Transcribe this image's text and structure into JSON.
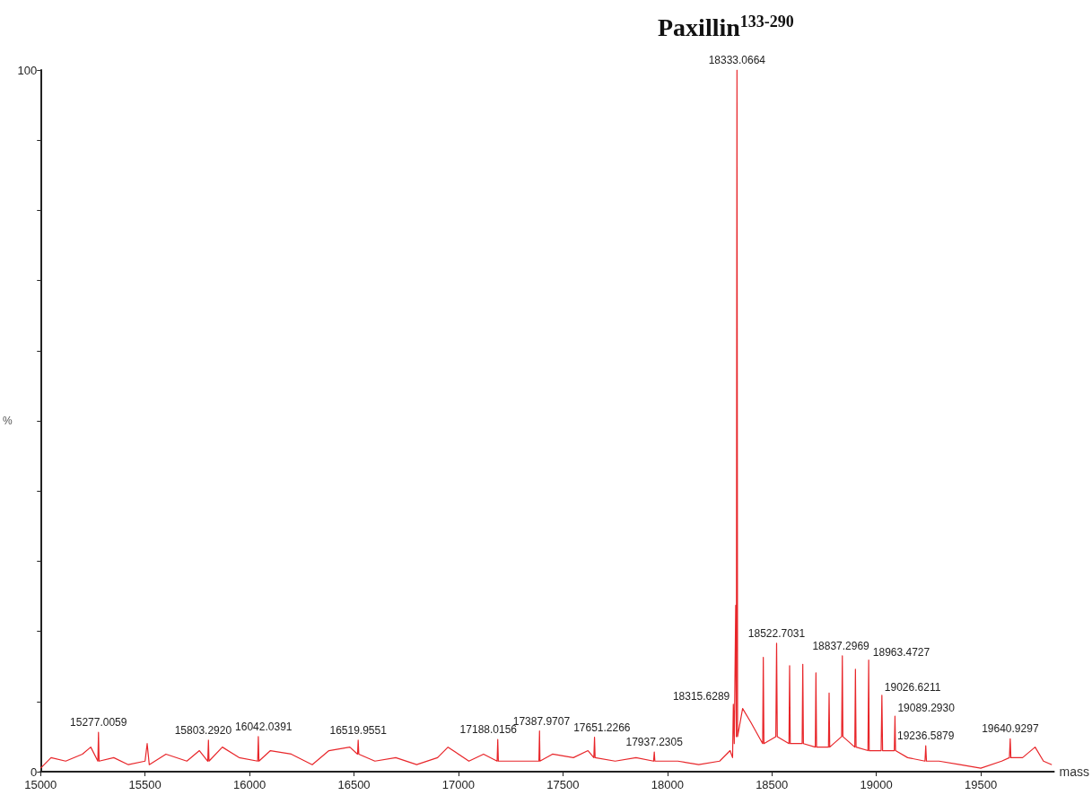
{
  "chart_data": {
    "type": "line",
    "title": "Paxillin$^{133-290}$",
    "xlabel": "mass",
    "ylabel": "%",
    "xlim": [
      15000,
      19850
    ],
    "xticks": [
      15000,
      15500,
      16000,
      16500,
      17000,
      17500,
      18000,
      18500,
      19000,
      19500
    ],
    "ylim": [
      0,
      100
    ],
    "yticks": [
      0,
      {
        "value": 10,
        "label": null
      },
      {
        "value": 20,
        "label": null
      },
      {
        "value": 30,
        "label": null
      },
      {
        "value": 40,
        "label": null
      },
      {
        "value": 50,
        "label": null
      },
      {
        "value": 60,
        "label": null
      },
      {
        "value": 70,
        "label": null
      },
      {
        "value": 80,
        "label": null
      },
      {
        "value": 90,
        "label": null
      },
      100
    ],
    "grid": false,
    "marker": "none",
    "line_style": "solid",
    "series": [
      {
        "color": "#e8262a",
        "x": [
          15000,
          15050,
          15120,
          15200,
          15240,
          15274,
          15277.0059,
          15280,
          15350,
          15420,
          15500,
          15510,
          15520,
          15600,
          15700,
          15760,
          15800,
          15803.292,
          15806,
          15870,
          15950,
          16039,
          16042.0391,
          16045,
          16100,
          16200,
          16300,
          16380,
          16480,
          16517,
          16519.9551,
          16523,
          16600,
          16700,
          16800,
          16900,
          16950,
          17050,
          17120,
          17185,
          17188.0156,
          17191,
          17250,
          17385,
          17387.9707,
          17390,
          17450,
          17550,
          17620,
          17648,
          17651.2266,
          17654,
          17750,
          17850,
          17934,
          17937.2305,
          17940,
          18050,
          18150,
          18250,
          18300,
          18312,
          18315.6289,
          18320,
          18327,
          18330,
          18333.0664,
          18336,
          18360,
          18400,
          18456,
          18459,
          18462,
          18519,
          18522.7031,
          18526,
          18582,
          18585,
          18588,
          18645,
          18648,
          18651,
          18708,
          18711,
          18714,
          18771,
          18774,
          18777,
          18834,
          18837.2969,
          18840,
          18897,
          18900,
          18903,
          18960,
          18963.4727,
          18966,
          19023,
          19026.6211,
          19030,
          19086,
          19089.293,
          19092,
          19150,
          19233,
          19236.5879,
          19240,
          19300,
          19400,
          19500,
          19600,
          19637,
          19640.9297,
          19644,
          19700,
          19760,
          19800,
          19840
        ],
        "values": [
          0.5,
          2,
          1.5,
          2.5,
          3.5,
          1.5,
          5.6,
          1.5,
          2,
          1,
          1.5,
          4,
          1,
          2.5,
          1.5,
          3,
          1.5,
          4.5,
          1.5,
          3.5,
          2,
          1.5,
          5,
          1.5,
          3,
          2.5,
          1,
          3,
          3.5,
          2.5,
          4.5,
          2.5,
          1.5,
          2,
          1,
          2,
          3.5,
          1.5,
          2.5,
          1.5,
          4.6,
          1.5,
          1.5,
          1.5,
          5.8,
          1.5,
          2.5,
          2,
          3,
          2,
          4.9,
          2,
          1.5,
          2,
          1.5,
          2.8,
          1.5,
          1.5,
          1,
          1.5,
          3,
          2,
          9.6,
          4,
          23.7,
          5,
          100,
          5,
          9,
          7,
          4,
          16.3,
          4,
          5,
          18.3,
          5,
          4,
          15.1,
          4,
          4,
          15.3,
          4,
          3.5,
          14.1,
          3.5,
          3.5,
          11.2,
          3.5,
          5,
          16.5,
          5,
          3.5,
          14.6,
          3.5,
          3,
          15.9,
          3,
          3,
          10.9,
          3,
          3,
          7.9,
          3,
          2,
          1.5,
          3.7,
          1.5,
          1.5,
          1,
          0.5,
          1.5,
          2,
          4.7,
          2,
          2,
          3.5,
          1.5,
          1
        ]
      }
    ],
    "annotations": [
      {
        "text": "15277.0059",
        "x": 15277.0059,
        "y": 5.6
      },
      {
        "text": "15803.2920",
        "x": 15803.292,
        "y": 4.5
      },
      {
        "text": "16042.0391",
        "x": 16042.0391,
        "y": 5
      },
      {
        "text": "16519.9551",
        "x": 16519.9551,
        "y": 4.5
      },
      {
        "text": "17188.0156",
        "x": 17188.0156,
        "y": 4.6
      },
      {
        "text": "17387.9707",
        "x": 17387.9707,
        "y": 5.8
      },
      {
        "text": "17651.2266",
        "x": 17651.2266,
        "y": 4.9
      },
      {
        "text": "17937.2305",
        "x": 17937.2305,
        "y": 2.8
      },
      {
        "text": "18315.6289",
        "x": 18315.6289,
        "y": 9.6
      },
      {
        "text": "18333.0664",
        "x": 18333.0664,
        "y": 100
      },
      {
        "text": "18522.7031",
        "x": 18522.7031,
        "y": 18.3
      },
      {
        "text": "18837.2969",
        "x": 18837.2969,
        "y": 16.5
      },
      {
        "text": "18963.4727",
        "x": 18963.4727,
        "y": 15.9
      },
      {
        "text": "19026.6211",
        "x": 19026.6211,
        "y": 10.9
      },
      {
        "text": "19089.2930",
        "x": 19089.293,
        "y": 7.9
      },
      {
        "text": "19236.5879",
        "x": 19236.5879,
        "y": 3.7
      },
      {
        "text": "19640.9297",
        "x": 19640.9297,
        "y": 4.7
      }
    ]
  }
}
